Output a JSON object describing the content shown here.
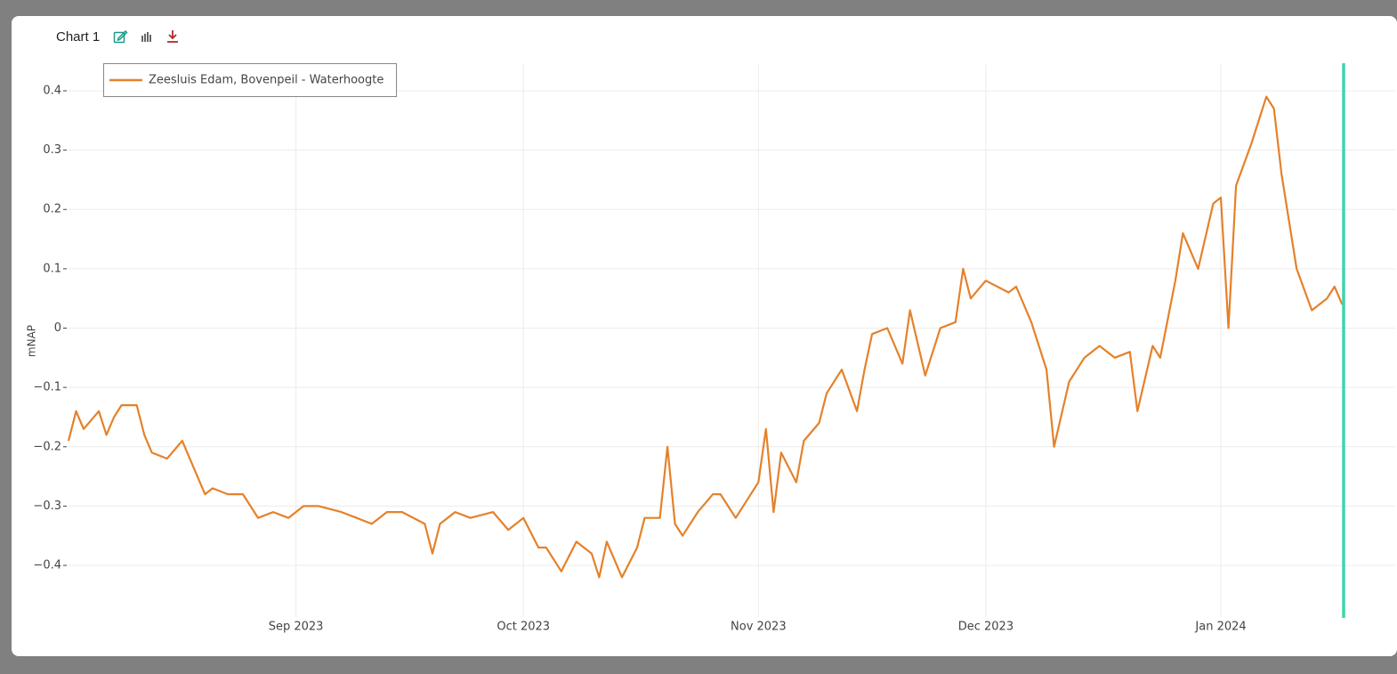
{
  "header": {
    "title": "Chart 1"
  },
  "chart_data": {
    "type": "line",
    "y_label": "mNAP",
    "x": [
      "2023-08-02",
      "2023-08-03",
      "2023-08-04",
      "2023-08-06",
      "2023-08-07",
      "2023-08-08",
      "2023-08-09",
      "2023-08-11",
      "2023-08-12",
      "2023-08-13",
      "2023-08-15",
      "2023-08-17",
      "2023-08-18",
      "2023-08-20",
      "2023-08-21",
      "2023-08-23",
      "2023-08-25",
      "2023-08-26",
      "2023-08-27",
      "2023-08-29",
      "2023-08-31",
      "2023-09-02",
      "2023-09-04",
      "2023-09-07",
      "2023-09-09",
      "2023-09-11",
      "2023-09-13",
      "2023-09-15",
      "2023-09-18",
      "2023-09-19",
      "2023-09-20",
      "2023-09-22",
      "2023-09-24",
      "2023-09-27",
      "2023-09-29",
      "2023-10-01",
      "2023-10-03",
      "2023-10-04",
      "2023-10-06",
      "2023-10-08",
      "2023-10-10",
      "2023-10-11",
      "2023-10-12",
      "2023-10-14",
      "2023-10-16",
      "2023-10-17",
      "2023-10-19",
      "2023-10-20",
      "2023-10-21",
      "2023-10-22",
      "2023-10-24",
      "2023-10-26",
      "2023-10-27",
      "2023-10-29",
      "2023-11-01",
      "2023-11-02",
      "2023-11-03",
      "2023-11-04",
      "2023-11-06",
      "2023-11-07",
      "2023-11-09",
      "2023-11-10",
      "2023-11-12",
      "2023-11-14",
      "2023-11-15",
      "2023-11-16",
      "2023-11-18",
      "2023-11-20",
      "2023-11-21",
      "2023-11-23",
      "2023-11-25",
      "2023-11-27",
      "2023-11-28",
      "2023-11-29",
      "2023-12-01",
      "2023-12-04",
      "2023-12-05",
      "2023-12-07",
      "2023-12-09",
      "2023-12-10",
      "2023-12-12",
      "2023-12-14",
      "2023-12-16",
      "2023-12-18",
      "2023-12-20",
      "2023-12-21",
      "2023-12-23",
      "2023-12-24",
      "2023-12-26",
      "2023-12-27",
      "2023-12-29",
      "2023-12-31",
      "2024-01-01",
      "2024-01-02",
      "2024-01-03",
      "2024-01-05",
      "2024-01-07",
      "2024-01-08",
      "2024-01-09",
      "2024-01-11",
      "2024-01-13",
      "2024-01-15",
      "2024-01-16",
      "2024-01-17"
    ],
    "series": [
      {
        "name": "Zeesluis Edam, Bovenpeil - Waterhoogte",
        "color": "#e5812a",
        "values": [
          -0.19,
          -0.14,
          -0.17,
          -0.14,
          -0.18,
          -0.15,
          -0.13,
          -0.13,
          -0.18,
          -0.21,
          -0.22,
          -0.19,
          -0.22,
          -0.28,
          -0.27,
          -0.28,
          -0.28,
          -0.3,
          -0.32,
          -0.31,
          -0.32,
          -0.3,
          -0.3,
          -0.31,
          -0.32,
          -0.33,
          -0.31,
          -0.31,
          -0.33,
          -0.38,
          -0.33,
          -0.31,
          -0.32,
          -0.31,
          -0.34,
          -0.32,
          -0.37,
          -0.37,
          -0.41,
          -0.36,
          -0.38,
          -0.42,
          -0.36,
          -0.42,
          -0.37,
          -0.32,
          -0.32,
          -0.2,
          -0.33,
          -0.35,
          -0.31,
          -0.28,
          -0.28,
          -0.32,
          -0.26,
          -0.17,
          -0.31,
          -0.21,
          -0.26,
          -0.19,
          -0.16,
          -0.11,
          -0.07,
          -0.14,
          -0.07,
          -0.01,
          0.0,
          -0.06,
          0.03,
          -0.08,
          0.0,
          0.01,
          0.1,
          0.05,
          0.08,
          0.06,
          0.07,
          0.01,
          -0.07,
          -0.2,
          -0.09,
          -0.05,
          -0.03,
          -0.05,
          -0.04,
          -0.14,
          -0.03,
          -0.05,
          0.08,
          0.16,
          0.1,
          0.21,
          0.22,
          0.0,
          0.24,
          0.31,
          0.39,
          0.37,
          0.26,
          0.1,
          0.03,
          0.05,
          0.07,
          0.04
        ]
      }
    ],
    "xlim": [
      "2023-08-02",
      "2024-01-24"
    ],
    "xticks": [
      {
        "value": "2023-09-01",
        "label": "Sep 2023"
      },
      {
        "value": "2023-10-01",
        "label": "Oct 2023"
      },
      {
        "value": "2023-11-01",
        "label": "Nov 2023"
      },
      {
        "value": "2023-12-01",
        "label": "Dec 2023"
      },
      {
        "value": "2024-01-01",
        "label": "Jan 2024"
      }
    ],
    "ylim": [
      -0.487,
      0.445
    ],
    "yticks": [
      {
        "value": -0.4,
        "label": "−0.4"
      },
      {
        "value": -0.3,
        "label": "−0.3"
      },
      {
        "value": -0.2,
        "label": "−0.2"
      },
      {
        "value": -0.1,
        "label": "−0.1"
      },
      0,
      0.1,
      0.2,
      0.3,
      0.4
    ],
    "grid": true,
    "legend": "top-left"
  }
}
